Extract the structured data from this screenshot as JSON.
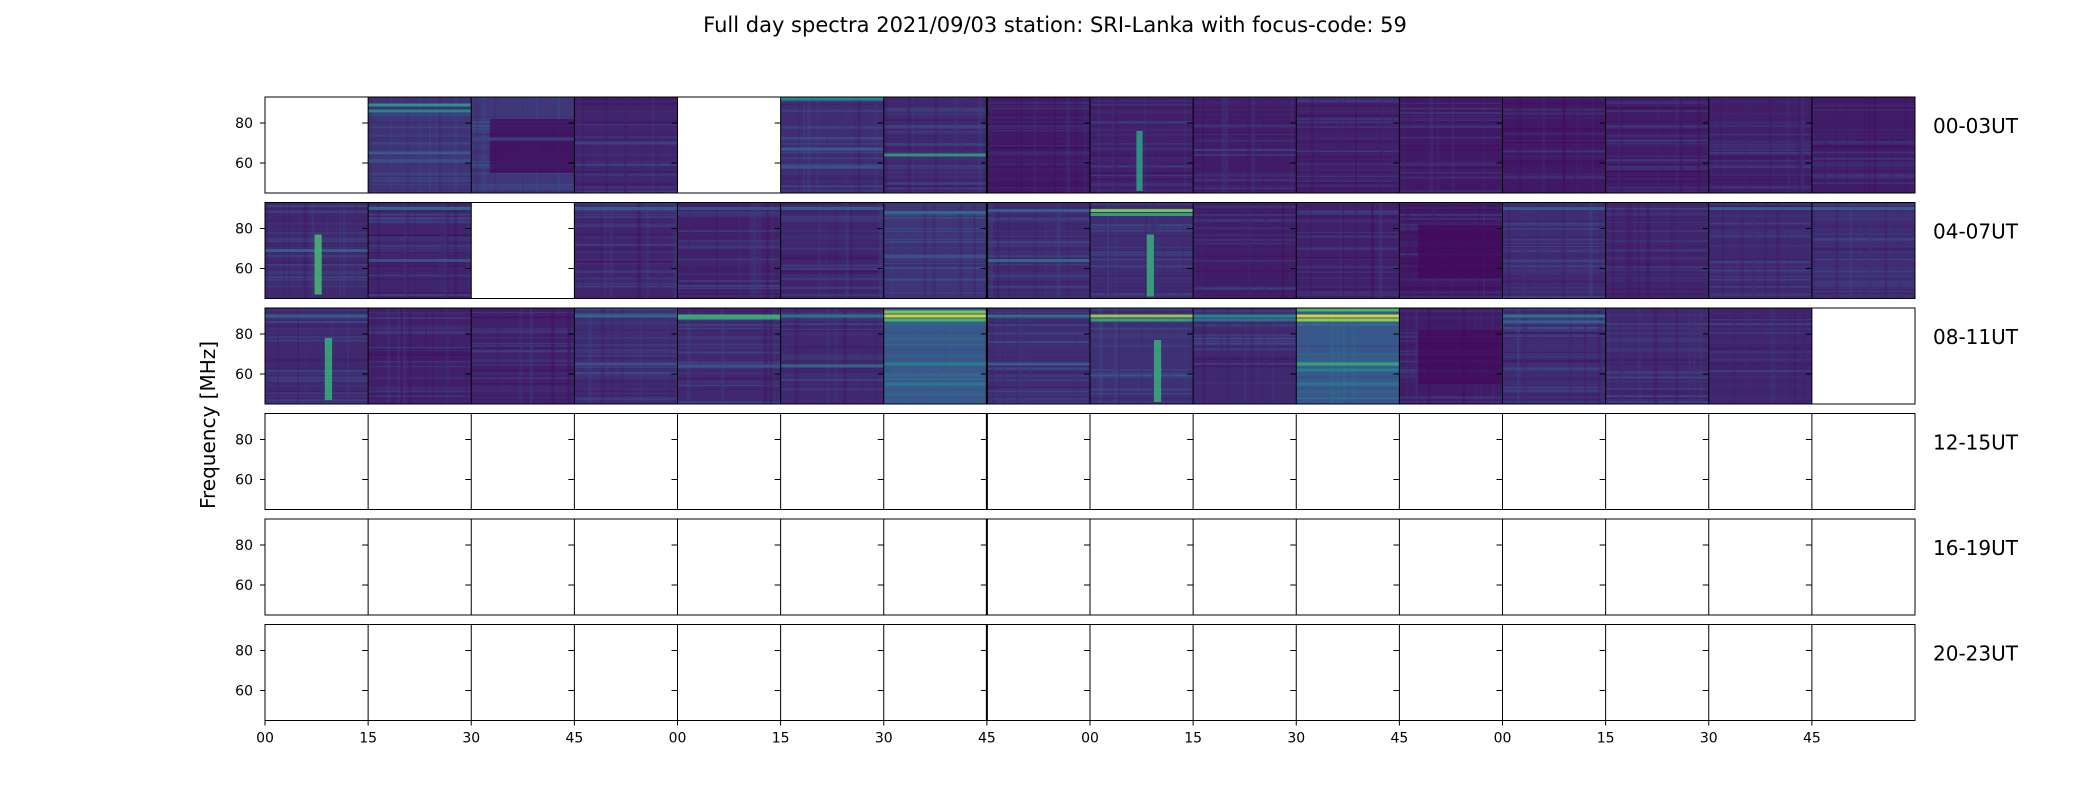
{
  "chart_data": {
    "type": "heatmap",
    "title": "Full day spectra 2021/09/03 station: SRI-Lanka with focus-code: 59",
    "ylabel": "Frequency [MHz]",
    "xlabel": "",
    "x_tick_labels": [
      "00",
      "15",
      "30",
      "45",
      "00",
      "15",
      "30",
      "45",
      "00",
      "15",
      "30",
      "45",
      "00",
      "15",
      "30",
      "45"
    ],
    "y_ticks": [
      60,
      80
    ],
    "ylim": [
      45,
      93
    ],
    "colormap": "viridis",
    "colors": {
      "low": "#440154",
      "mid": "#3b528b",
      "teal": "#21918c",
      "green": "#5ec962",
      "high": "#fde725"
    },
    "grid": false,
    "rows": [
      {
        "label": "00-03UT",
        "panels": [
          {
            "empty": true
          },
          {
            "level": 0.25,
            "lines": [
              {
                "f": 89,
                "s": 0.55
              },
              {
                "f": 86,
                "s": 0.5
              },
              {
                "f": 65,
                "s": 0.3
              },
              {
                "f": 61,
                "s": 0.25
              }
            ]
          },
          {
            "level": 0.28,
            "lines": [
              {
                "f": 72,
                "s": 0.2
              }
            ],
            "dark_block": true
          },
          {
            "level": 0.18,
            "lines": [
              {
                "f": 70,
                "s": 0.2
              }
            ]
          },
          {
            "empty": true
          },
          {
            "level": 0.22,
            "lines": [
              {
                "f": 92,
                "s": 0.5
              },
              {
                "f": 67,
                "s": 0.3
              },
              {
                "f": 58,
                "s": 0.25
              }
            ]
          },
          {
            "level": 0.2,
            "lines": [
              {
                "f": 64,
                "s": 0.55
              },
              {
                "f": 78,
                "s": 0.2
              }
            ]
          },
          {
            "level": 0.12,
            "lines": []
          },
          {
            "level": 0.15,
            "lines": [],
            "burst": {
              "x": 0.45,
              "w": 0.06,
              "f0": 46,
              "f1": 76,
              "s": 0.55
            }
          },
          {
            "level": 0.14,
            "lines": []
          },
          {
            "level": 0.16,
            "lines": []
          },
          {
            "level": 0.12,
            "lines": []
          },
          {
            "level": 0.12,
            "lines": []
          },
          {
            "level": 0.14,
            "lines": []
          },
          {
            "level": 0.15,
            "lines": []
          },
          {
            "level": 0.14,
            "lines": []
          }
        ]
      },
      {
        "label": "04-07UT",
        "panels": [
          {
            "level": 0.2,
            "lines": [
              {
                "f": 69,
                "s": 0.3
              }
            ],
            "burst": {
              "x": 0.48,
              "w": 0.07,
              "f0": 47,
              "f1": 77,
              "s": 0.65
            }
          },
          {
            "level": 0.18,
            "lines": [
              {
                "f": 90,
                "s": 0.35
              },
              {
                "f": 64,
                "s": 0.25
              }
            ]
          },
          {
            "empty": true
          },
          {
            "level": 0.18,
            "lines": [
              {
                "f": 90,
                "s": 0.3
              }
            ]
          },
          {
            "level": 0.16,
            "lines": [
              {
                "f": 90,
                "s": 0.25
              }
            ]
          },
          {
            "level": 0.18,
            "lines": [
              {
                "f": 90,
                "s": 0.3
              }
            ]
          },
          {
            "level": 0.26,
            "lines": [
              {
                "f": 88,
                "s": 0.35
              },
              {
                "f": 66,
                "s": 0.25
              }
            ]
          },
          {
            "level": 0.2,
            "lines": [
              {
                "f": 89,
                "s": 0.3
              },
              {
                "f": 64,
                "s": 0.35
              }
            ]
          },
          {
            "level": 0.22,
            "lines": [
              {
                "f": 89,
                "s": 0.8
              },
              {
                "f": 87,
                "s": 0.6
              }
            ],
            "burst": {
              "x": 0.55,
              "w": 0.07,
              "f0": 46,
              "f1": 77,
              "s": 0.6
            }
          },
          {
            "level": 0.14,
            "lines": []
          },
          {
            "level": 0.16,
            "lines": []
          },
          {
            "level": 0.12,
            "lines": [],
            "dark_block": true
          },
          {
            "level": 0.22,
            "lines": [
              {
                "f": 90,
                "s": 0.3
              }
            ]
          },
          {
            "level": 0.18,
            "lines": []
          },
          {
            "level": 0.2,
            "lines": [
              {
                "f": 90,
                "s": 0.3
              }
            ]
          },
          {
            "level": 0.22,
            "lines": [
              {
                "f": 90,
                "s": 0.3
              }
            ]
          }
        ]
      },
      {
        "label": "08-11UT",
        "panels": [
          {
            "level": 0.2,
            "lines": [
              {
                "f": 89,
                "s": 0.3
              }
            ],
            "burst": {
              "x": 0.58,
              "w": 0.07,
              "f0": 47,
              "f1": 78,
              "s": 0.6
            }
          },
          {
            "level": 0.16,
            "lines": []
          },
          {
            "level": 0.16,
            "lines": []
          },
          {
            "level": 0.22,
            "lines": [
              {
                "f": 89,
                "s": 0.35
              },
              {
                "f": 65,
                "s": 0.25
              }
            ]
          },
          {
            "level": 0.2,
            "lines": [
              {
                "f": 89,
                "s": 0.65
              },
              {
                "f": 88,
                "s": 0.6
              },
              {
                "f": 64,
                "s": 0.25
              }
            ]
          },
          {
            "level": 0.2,
            "lines": [
              {
                "f": 89,
                "s": 0.4
              },
              {
                "f": 64,
                "s": 0.35
              }
            ]
          },
          {
            "level": 0.45,
            "lines": [
              {
                "f": 91,
                "s": 0.8
              },
              {
                "f": 89,
                "s": 0.95
              },
              {
                "f": 87,
                "s": 0.7
              },
              {
                "f": 65,
                "s": 0.45
              },
              {
                "f": 55,
                "s": 0.4
              }
            ]
          },
          {
            "level": 0.22,
            "lines": [
              {
                "f": 89,
                "s": 0.4
              },
              {
                "f": 65,
                "s": 0.3
              }
            ]
          },
          {
            "level": 0.24,
            "lines": [
              {
                "f": 89,
                "s": 0.85
              },
              {
                "f": 87,
                "s": 0.6
              }
            ],
            "burst": {
              "x": 0.62,
              "w": 0.07,
              "f0": 46,
              "f1": 77,
              "s": 0.6
            }
          },
          {
            "level": 0.2,
            "lines": [
              {
                "f": 89,
                "s": 0.5
              },
              {
                "f": 87,
                "s": 0.4
              }
            ]
          },
          {
            "level": 0.45,
            "lines": [
              {
                "f": 92,
                "s": 0.7
              },
              {
                "f": 89,
                "s": 0.95
              },
              {
                "f": 87,
                "s": 0.85
              },
              {
                "f": 65,
                "s": 0.6
              },
              {
                "f": 62,
                "s": 0.45
              },
              {
                "f": 55,
                "s": 0.4
              }
            ]
          },
          {
            "level": 0.14,
            "lines": [],
            "dark_block": true
          },
          {
            "level": 0.22,
            "lines": [
              {
                "f": 89,
                "s": 0.4
              },
              {
                "f": 86,
                "s": 0.3
              }
            ]
          },
          {
            "level": 0.2,
            "lines": []
          },
          {
            "level": 0.18,
            "lines": []
          },
          {
            "empty": true
          }
        ]
      },
      {
        "label": "12-15UT",
        "panels": "empty"
      },
      {
        "label": "16-19UT",
        "panels": "empty"
      },
      {
        "label": "20-23UT",
        "panels": "empty"
      }
    ]
  }
}
